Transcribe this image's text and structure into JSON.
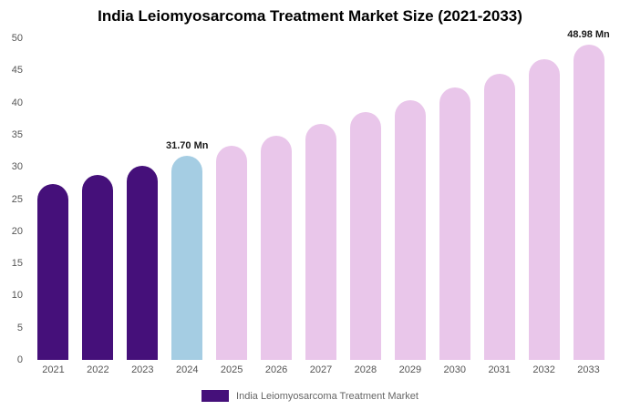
{
  "title": "India Leiomyosarcoma Treatment Market Size (2021-2033)",
  "legend": {
    "label": "India Leiomyosarcoma Treatment Market",
    "swatch_color": "#45107a"
  },
  "colors": {
    "historical_purple": "#45107a",
    "current_year_blue": "#a5cde3",
    "forecast_pink": "#e9c6ea",
    "background": "#ffffff",
    "axis_text": "#555555",
    "annotation_text": "#1a1a1a"
  },
  "chart_data": {
    "type": "bar",
    "title": "India Leiomyosarcoma Treatment Market Size (2021-2033)",
    "xlabel": "",
    "ylabel": "",
    "unit": "Mn",
    "grid": false,
    "legend_position": "bottom",
    "ylim": [
      0,
      50
    ],
    "ytick_step": 5,
    "ytick_labels": [
      "0",
      "5",
      "10",
      "15",
      "20",
      "25",
      "30",
      "35",
      "40",
      "45",
      "50"
    ],
    "categories": [
      "2021",
      "2022",
      "2023",
      "2024",
      "2025",
      "2026",
      "2027",
      "2028",
      "2029",
      "2030",
      "2031",
      "2032",
      "2033"
    ],
    "values": [
      27.4,
      28.8,
      30.2,
      31.7,
      33.3,
      34.9,
      36.7,
      38.5,
      40.4,
      42.4,
      44.5,
      46.7,
      48.98
    ],
    "bar_colors": [
      "#45107a",
      "#45107a",
      "#45107a",
      "#a5cde3",
      "#e9c6ea",
      "#e9c6ea",
      "#e9c6ea",
      "#e9c6ea",
      "#e9c6ea",
      "#e9c6ea",
      "#e9c6ea",
      "#e9c6ea",
      "#e9c6ea"
    ],
    "annotations": [
      {
        "category": "2024",
        "text": "31.70 Mn"
      },
      {
        "category": "2033",
        "text": "48.98 Mn"
      }
    ]
  }
}
